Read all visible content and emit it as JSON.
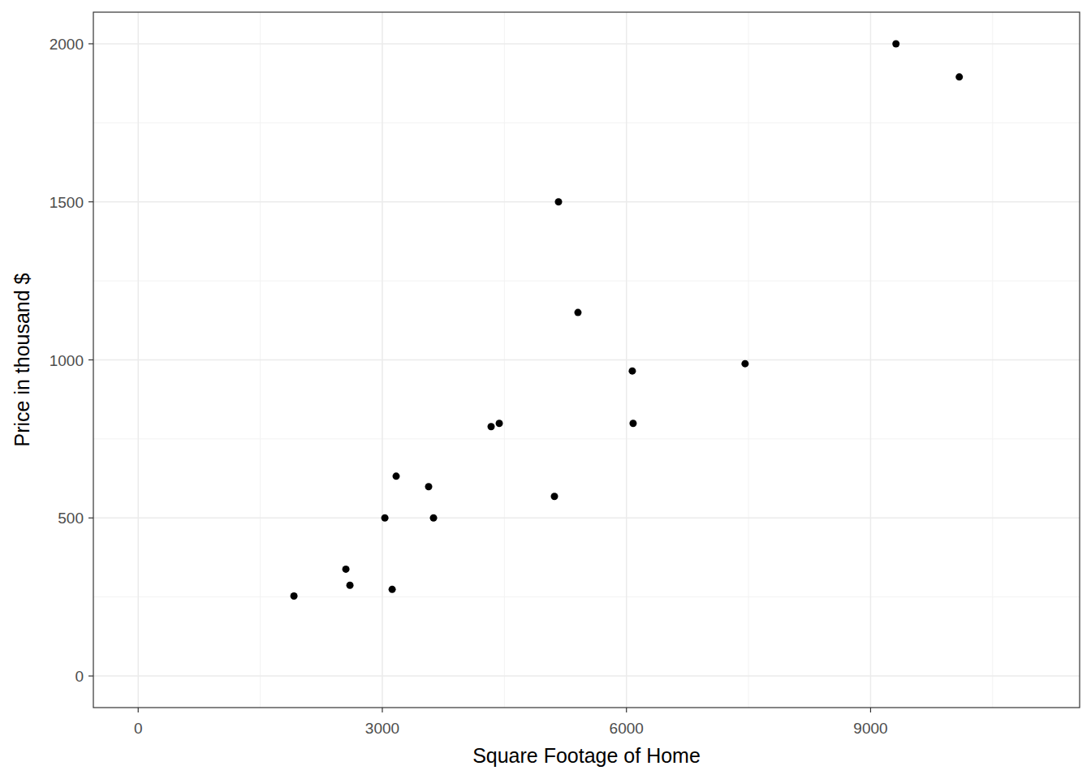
{
  "chart_data": {
    "type": "scatter",
    "x_label": "Square Footage of Home",
    "y_label": "Price in thousand $",
    "x": [
      1914,
      2552,
      2602,
      3031,
      3121,
      3170,
      3569,
      3629,
      4337,
      4437,
      5115,
      5165,
      5404,
      6072,
      6082,
      7458,
      9312,
      10090
    ],
    "values": [
      253,
      338,
      287,
      500,
      274,
      632,
      599,
      500,
      789,
      799,
      568,
      1500,
      1150,
      965,
      799,
      988,
      2000,
      1895
    ],
    "color": "#000000",
    "xlim": [
      -551,
      11569
    ],
    "xticks": [
      0,
      3000,
      6000,
      9000
    ],
    "ylim": [
      -100,
      2100
    ],
    "yticks": [
      0,
      500,
      1000,
      1500,
      2000
    ],
    "grid": true
  }
}
